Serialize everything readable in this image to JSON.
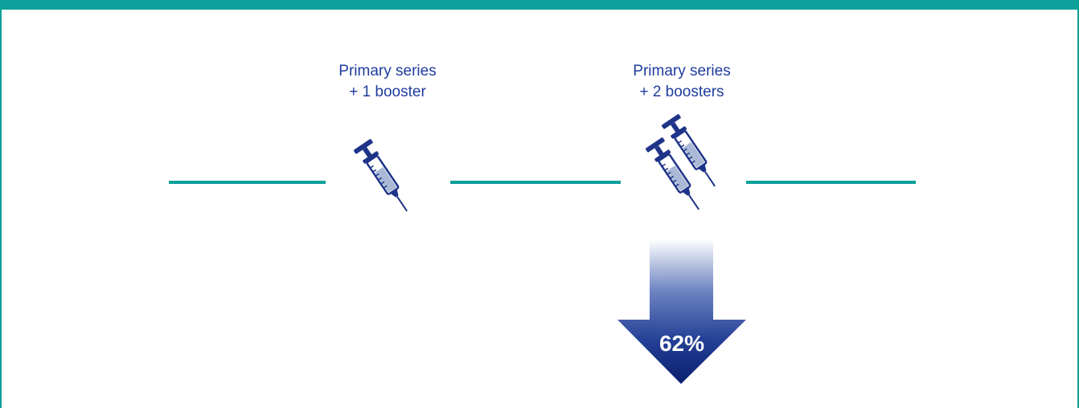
{
  "colors": {
    "accent_teal": "#0ea09a",
    "label_blue": "#1f3c9e",
    "syringe_dark": "#1e3488",
    "syringe_fill": "#aab9d6",
    "arrow_dark": "#0a1f6e",
    "arrow_light": "#ffffff"
  },
  "labels": {
    "one_booster": {
      "line1": "Primary series",
      "line2": "+ 1 booster"
    },
    "two_boosters": {
      "line1": "Primary series",
      "line2": "+ 2 boosters"
    }
  },
  "reduction": {
    "value_text": "62%"
  },
  "icons": {
    "syringe": "syringe-icon",
    "arrow": "arrow-down-icon"
  }
}
